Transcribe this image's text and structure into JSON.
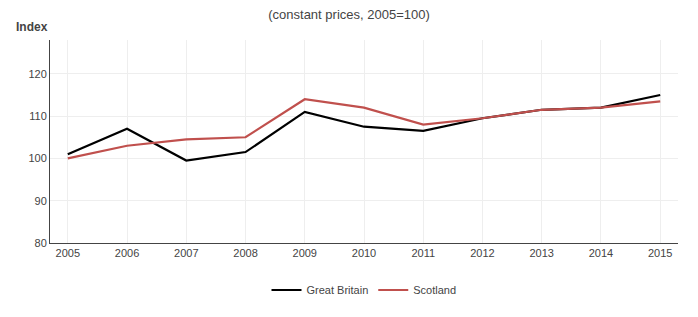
{
  "chart_data": {
    "type": "line",
    "title": "(constant prices, 2005=100)",
    "ylabel": "Index",
    "x": [
      2005,
      2006,
      2007,
      2008,
      2009,
      2010,
      2011,
      2012,
      2013,
      2014,
      2015
    ],
    "series": [
      {
        "name": "Great Britain",
        "color": "#000000",
        "values": [
          101,
          107,
          99.5,
          101.5,
          111,
          107.5,
          106.5,
          109.5,
          111.5,
          112,
          115
        ]
      },
      {
        "name": "Scotland",
        "color": "#c0504d",
        "values": [
          100,
          103,
          104.5,
          105,
          114,
          112,
          108,
          109.5,
          111.5,
          112,
          113.5
        ]
      }
    ],
    "xlim": [
      2004.7,
      2015.3
    ],
    "xticks": [
      2005,
      2006,
      2007,
      2008,
      2009,
      2010,
      2011,
      2012,
      2013,
      2014,
      2015
    ],
    "ylim": [
      80,
      128
    ],
    "yticks": [
      80,
      90,
      100,
      110,
      120
    ],
    "grid": true,
    "legend": "bottom"
  }
}
